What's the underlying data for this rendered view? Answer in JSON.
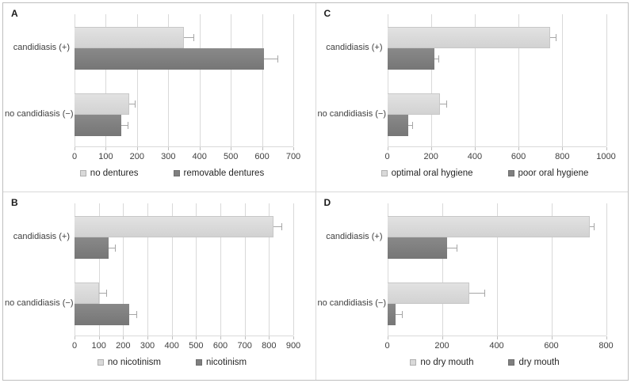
{
  "colors": {
    "light_bar": "#d9d9d9",
    "dark_bar": "#7f7f7f",
    "gridline": "#d9d9d9",
    "error_bar": "#a6a6a6",
    "text": "#404040"
  },
  "chart_data": [
    {
      "panel": "A",
      "type": "bar",
      "orientation": "horizontal",
      "categories": [
        "candidiasis (+)",
        "no candidiasis (−)"
      ],
      "series": [
        {
          "name": "no dentures",
          "shade": "light",
          "values": [
            350,
            175
          ],
          "errors": [
            30,
            18
          ]
        },
        {
          "name": "removable dentures",
          "shade": "dark",
          "values": [
            605,
            150
          ],
          "errors": [
            45,
            20
          ]
        }
      ],
      "xlim": [
        0,
        700
      ],
      "xtick_step": 100,
      "grid": true,
      "legend_position": "bottom"
    },
    {
      "panel": "B",
      "type": "bar",
      "orientation": "horizontal",
      "categories": [
        "candidiasis (+)",
        "no candidiasis (−)"
      ],
      "series": [
        {
          "name": "no nicotinism",
          "shade": "light",
          "values": [
            820,
            100
          ],
          "errors": [
            30,
            30
          ]
        },
        {
          "name": "nicotinism",
          "shade": "dark",
          "values": [
            140,
            225
          ],
          "errors": [
            25,
            28
          ]
        }
      ],
      "xlim": [
        0,
        900
      ],
      "xtick_step": 100,
      "grid": true,
      "legend_position": "bottom"
    },
    {
      "panel": "C",
      "type": "bar",
      "orientation": "horizontal",
      "categories": [
        "candidiasis (+)",
        "no candidiasis (−)"
      ],
      "series": [
        {
          "name": "optimal oral hygiene",
          "shade": "light",
          "values": [
            745,
            240
          ],
          "errors": [
            25,
            30
          ]
        },
        {
          "name": "poor oral hygiene",
          "shade": "dark",
          "values": [
            215,
            95
          ],
          "errors": [
            20,
            18
          ]
        }
      ],
      "xlim": [
        0,
        1000
      ],
      "xtick_step": 200,
      "grid": true,
      "legend_position": "bottom"
    },
    {
      "panel": "D",
      "type": "bar",
      "orientation": "horizontal",
      "categories": [
        "candidiasis (+)",
        "no candidiasis (−)"
      ],
      "series": [
        {
          "name": "no dry mouth",
          "shade": "light",
          "values": [
            740,
            300
          ],
          "errors": [
            15,
            55
          ]
        },
        {
          "name": "dry mouth",
          "shade": "dark",
          "values": [
            220,
            30
          ],
          "errors": [
            35,
            25
          ]
        }
      ],
      "xlim": [
        0,
        800
      ],
      "xtick_step": 200,
      "grid": true,
      "legend_position": "bottom"
    }
  ]
}
